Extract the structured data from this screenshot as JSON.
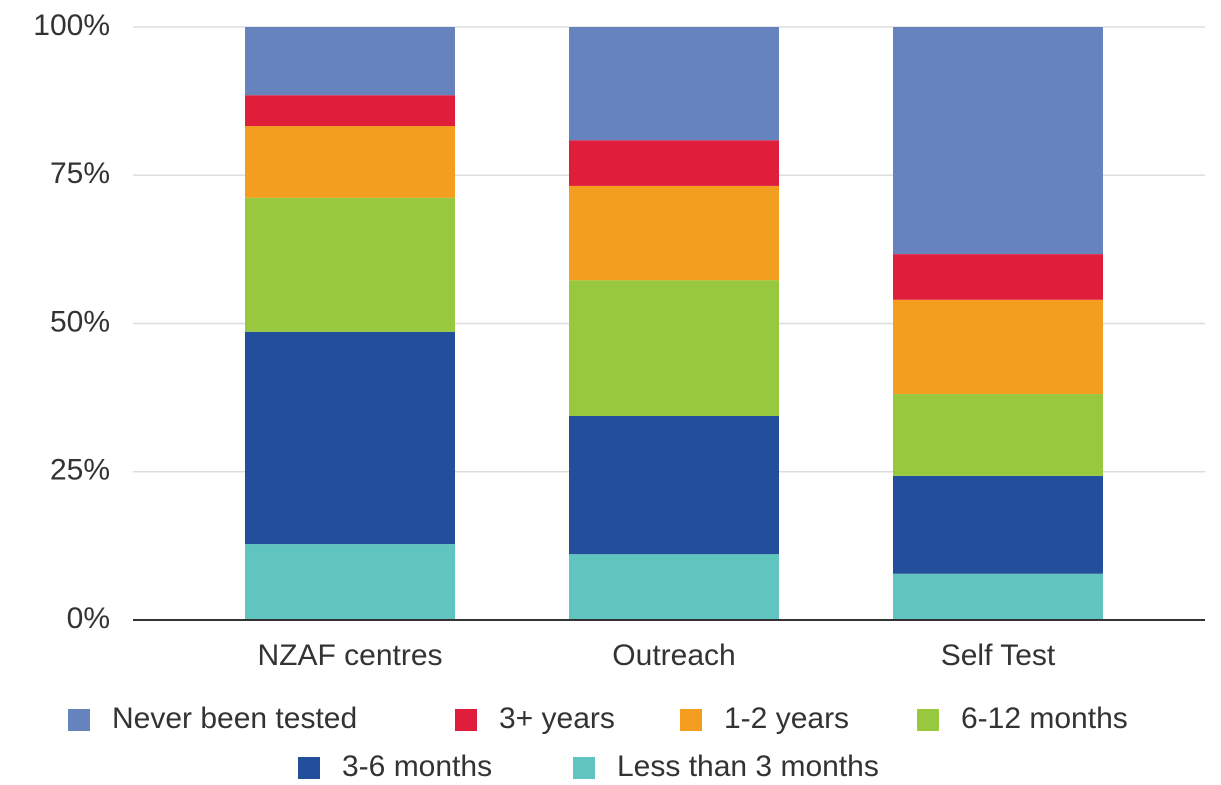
{
  "chart_data": {
    "type": "stacked_bar",
    "categories": [
      "NZAF centres",
      "Outreach",
      "Self Test"
    ],
    "series": [
      {
        "name": "Never been tested",
        "color": "#6783bd",
        "values": [
          11.5,
          19.1,
          38.3
        ]
      },
      {
        "name": "3+ years",
        "color": "#e01e3c",
        "values": [
          5.2,
          7.7,
          7.7
        ]
      },
      {
        "name": "1-2 years",
        "color": "#f49e1f",
        "values": [
          12.1,
          15.9,
          15.9
        ]
      },
      {
        "name": "6-12 months",
        "color": "#97c83e",
        "values": [
          22.6,
          22.9,
          13.8
        ]
      },
      {
        "name": "3-6 months",
        "color": "#224e9c",
        "values": [
          35.8,
          23.3,
          16.5
        ]
      },
      {
        "name": "Less than 3 months",
        "color": "#60c5be",
        "values": [
          12.8,
          11.1,
          7.8
        ]
      }
    ],
    "ylim": [
      0,
      100
    ],
    "yticks": [
      {
        "value": 0,
        "label": "0%"
      },
      {
        "value": 25,
        "label": "25%"
      },
      {
        "value": 50,
        "label": "50%"
      },
      {
        "value": 75,
        "label": "75%"
      },
      {
        "value": 100,
        "label": "100%"
      }
    ],
    "grid": true,
    "legend": "bottom"
  }
}
